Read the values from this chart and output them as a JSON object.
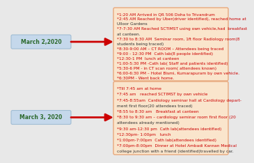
{
  "bg_color": "#e8e8e8",
  "box_bg": "#fae5cc",
  "box_edge": "#e8a87c",
  "date_bg": "#c5d8eb",
  "date_edge": "#a0bdd4",
  "arrow_color": "#cc0000",
  "date1": "March 2,2020",
  "date2": "March 3, 2020",
  "lines1": [
    [
      "*1:20 AM",
      " Arrived in QR 506 Doha to Trivandrum",
      true
    ],
    [
      "*2:45 AM",
      " Reached by Uber(driver identified), reached home at",
      true
    ],
    [
      "",
      "Ulloor Gardens",
      false
    ],
    [
      "*7-7:30 AM",
      " Reached SCTIMST using own vehicle,had  breakfast",
      true
    ],
    [
      "",
      "at canteen.",
      false
    ],
    [
      "*7:30 to 8:30 AM",
      "  Seminar room, 1ft floor Radiology room(8",
      true
    ],
    [
      "",
      "students being traced)",
      false
    ],
    [
      "*8:30-9:00 AM",
      " – CT ROOM – Attendees being traced",
      true
    ],
    [
      "*9:00 - 12:30 PM",
      "  Cath lab(8 people identified)",
      true
    ],
    [
      "*12:30-1 PM",
      "  lunch at canteen",
      true
    ],
    [
      "*1:00-5:30 PM",
      " -Cath lab( Staff and patients identified)",
      true
    ],
    [
      "*5:30-6 PM",
      " - in CT scan room( attendees known)",
      true
    ],
    [
      "*6:00-6:30 PM",
      " – Hotel Bismi, Kumarapuram by own vehicle.",
      true
    ],
    [
      "*6:30PM",
      " - Went back home.",
      true
    ]
  ],
  "lines2": [
    [
      "*Till 7:45 am",
      " at home",
      true
    ],
    [
      "*7:45 am",
      "   reached SCTIMST by own vehicle",
      true
    ],
    [
      "*7:45-8:55am",
      "  Cardiology seminar hall at Cardiology depart-",
      true
    ],
    [
      "",
      "ment first floor(20 attendees traced)",
      false
    ],
    [
      "*8:55 to 8:30 am",
      "   Breakfast at canteen",
      true
    ],
    [
      "*8:30 to 9:30 am",
      " – cardiology seminar room first floor (20",
      true
    ],
    [
      "",
      "attendees already mentioned)",
      false
    ],
    [
      "*9:30 am-12:30 pm",
      "  Cath lab(attendees identified)",
      true
    ],
    [
      "*12:30pm- 1:00pm",
      "   lunch",
      true
    ],
    [
      "*1:00pm-7:00pm",
      "  Cath lab(attendees identified)",
      true
    ],
    [
      "*7:00pm-8:00pm",
      "  Dinner at Hotel Ambadi Kannan Medical",
      true
    ],
    [
      "",
      "college junction with a friend (identified)travelled by car.",
      false
    ]
  ],
  "fontsize": 4.2,
  "date_fontsize": 5.5
}
